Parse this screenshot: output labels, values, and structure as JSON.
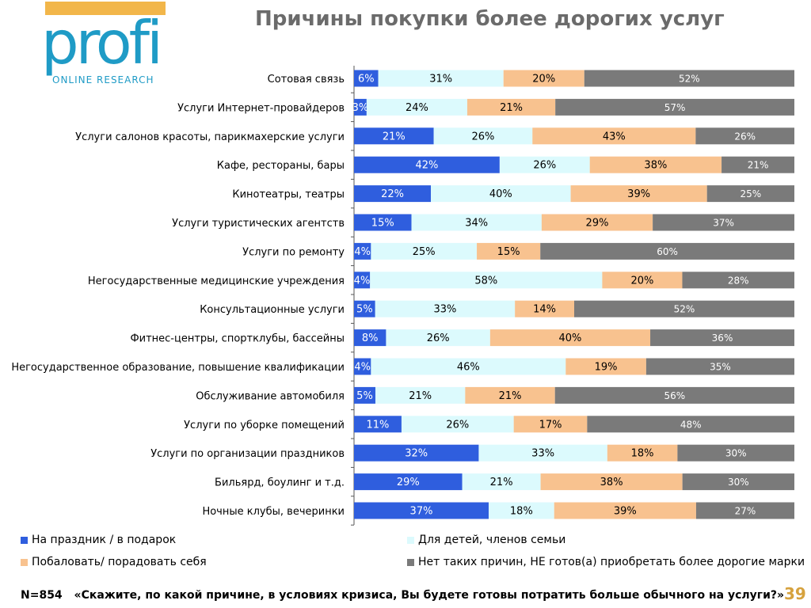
{
  "logo": {
    "word": "profi",
    "sub": "ONLINE RESEARCH"
  },
  "title": "Причины покупки более дорогих услуг",
  "colors": {
    "blue": "#2f5ede",
    "cyan": "#dcfafd",
    "peach": "#f8c28f",
    "gray": "#7a7a7a",
    "axis": "#555555"
  },
  "chart_data": {
    "type": "bar",
    "stacked": true,
    "orientation": "horizontal",
    "percent_stacked": true,
    "categories": [
      "Сотовая связь",
      "Услуги Интернет-провайдеров",
      "Услуги салонов красоты, парикмахерские услуги",
      "Кафе, рестораны, бары",
      "Кинотеатры, театры",
      "Услуги туристических агентств",
      "Услуги по ремонту",
      "Негосударственные медицинские учреждения",
      "Консультационные услуги",
      "Фитнес-центры, спортклубы, бассейны",
      "Негосударственное образование, повышение квалификации",
      "Обслуживание автомобиля",
      "Услуги по уборке помещений",
      "Услуги по организации праздников",
      "Бильярд, боулинг и т.д.",
      "Ночные клубы, вечеринки"
    ],
    "series": [
      {
        "name": "На праздник / в подарок",
        "color": "#2f5ede",
        "label_color": "#ffffff",
        "values": [
          6,
          3,
          21,
          42,
          22,
          15,
          4,
          4,
          5,
          8,
          4,
          5,
          11,
          32,
          29,
          37
        ]
      },
      {
        "name": "Для детей, членов семьи",
        "color": "#dcfafd",
        "label_color": "#000000",
        "values": [
          31,
          24,
          26,
          26,
          40,
          34,
          25,
          58,
          33,
          26,
          46,
          21,
          26,
          33,
          21,
          18
        ]
      },
      {
        "name": "Побаловать/ порадовать себя",
        "color": "#f8c28f",
        "label_color": "#000000",
        "values": [
          20,
          21,
          43,
          38,
          39,
          29,
          15,
          20,
          14,
          40,
          19,
          21,
          17,
          18,
          38,
          39
        ]
      },
      {
        "name": "Нет таких причин, НЕ готов(а) приобретать более дорогие марки",
        "color": "#7a7a7a",
        "label_color": "#ffffff",
        "values": [
          52,
          57,
          26,
          21,
          25,
          37,
          60,
          28,
          52,
          36,
          35,
          56,
          48,
          30,
          30,
          27
        ]
      }
    ],
    "value_suffix": "%",
    "legend_position": "bottom",
    "grid": false
  },
  "footer": {
    "n": "N=854",
    "question": "«Скажите, по какой причине, в условиях кризиса, Вы будете готовы потратить больше обычного на услуги?»"
  },
  "page_number": "39"
}
